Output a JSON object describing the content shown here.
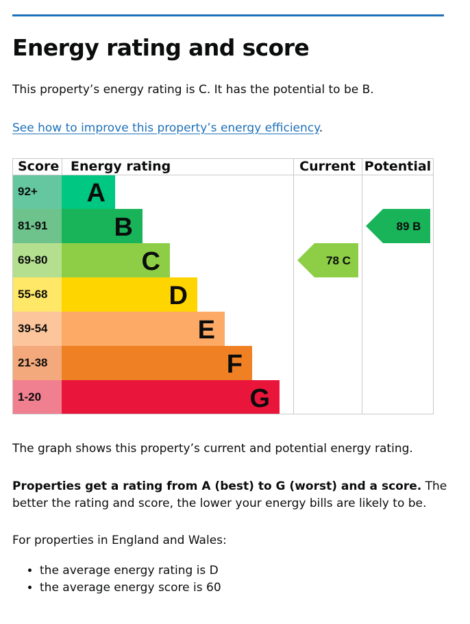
{
  "heading": "Energy rating and score",
  "intro": "This property’s energy rating is C. It has the potential to be B.",
  "improve_link": "See how to improve this property’s energy efficiency",
  "improve_suffix": ".",
  "graph_note": "The graph shows this property’s current and potential energy rating.",
  "rating_info_bold": "Properties get a rating from A (best) to G (worst) and a score.",
  "rating_info_rest": " The better the rating and score, the lower your energy bills are likely to be.",
  "average_intro": "For properties in England and Wales:",
  "averages": [
    "the average energy rating is D",
    "the average energy score is 60"
  ],
  "colors": {
    "link": "#1d70b8",
    "band": {
      "A": "#00c781",
      "B": "#19b459",
      "C": "#8dce46",
      "D": "#ffd500",
      "E": "#fcaa65",
      "F": "#ef8023",
      "G": "#e9153b"
    },
    "score_cell": {
      "A": "#64c7a0",
      "B": "#6ec38d",
      "C": "#b4df8e",
      "D": "#ffe768",
      "E": "#fcc59b",
      "F": "#f3a97c",
      "G": "#f07f90"
    }
  },
  "chart_data": {
    "type": "table",
    "columns": [
      "Score",
      "Energy rating",
      "Current",
      "Potential"
    ],
    "bands": [
      {
        "rating": "A",
        "score": "92+"
      },
      {
        "rating": "B",
        "score": "81-91"
      },
      {
        "rating": "C",
        "score": "69-80"
      },
      {
        "rating": "D",
        "score": "55-68"
      },
      {
        "rating": "E",
        "score": "39-54"
      },
      {
        "rating": "F",
        "score": "21-38"
      },
      {
        "rating": "G",
        "score": "1-20"
      }
    ],
    "current": {
      "score": 78,
      "rating": "C"
    },
    "potential": {
      "score": 89,
      "rating": "B"
    }
  }
}
